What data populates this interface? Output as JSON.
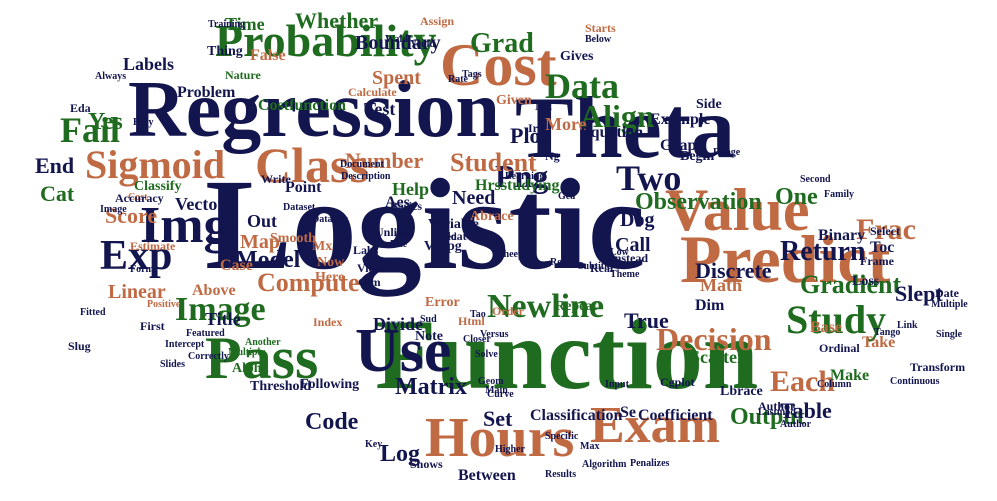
{
  "colors": {
    "navy": "#13154f",
    "green": "#1f6b1f",
    "orange": "#c06a44"
  },
  "words": [
    {
      "text": "Logistic",
      "color": "navy"
    },
    {
      "text": "Function",
      "color": "green"
    },
    {
      "text": "Regression",
      "color": "navy"
    },
    {
      "text": "Theta",
      "color": "navy"
    },
    {
      "text": "Predict",
      "color": "orange"
    },
    {
      "text": "Value",
      "color": "orange"
    },
    {
      "text": "Hours",
      "color": "orange"
    },
    {
      "text": "Cost",
      "color": "orange"
    },
    {
      "text": "Probability",
      "color": "green"
    },
    {
      "text": "Pass",
      "color": "green"
    },
    {
      "text": "Use",
      "color": "navy"
    },
    {
      "text": "Class",
      "color": "orange"
    },
    {
      "text": "Img",
      "color": "navy"
    },
    {
      "text": "Exam",
      "color": "orange"
    },
    {
      "text": "Sigmoid",
      "color": "orange"
    },
    {
      "text": "Study",
      "color": "green"
    },
    {
      "text": "Newline",
      "color": "green"
    },
    {
      "text": "Exp",
      "color": "navy"
    },
    {
      "text": "Image",
      "color": "green"
    },
    {
      "text": "Data",
      "color": "green"
    },
    {
      "text": "Align",
      "color": "green"
    },
    {
      "text": "Grad",
      "color": "green"
    },
    {
      "text": "Fail",
      "color": "green"
    },
    {
      "text": "Png",
      "color": "navy"
    },
    {
      "text": "Two",
      "color": "navy"
    },
    {
      "text": "Return",
      "color": "navy"
    },
    {
      "text": "Decision",
      "color": "orange"
    },
    {
      "text": "Frac",
      "color": "orange"
    },
    {
      "text": "Each",
      "color": "orange"
    },
    {
      "text": "Output",
      "color": "green"
    },
    {
      "text": "Gradient",
      "color": "green"
    },
    {
      "text": "Observation",
      "color": "green"
    },
    {
      "text": "Student",
      "color": "orange"
    },
    {
      "text": "Number",
      "color": "orange"
    },
    {
      "text": "Compute",
      "color": "orange"
    },
    {
      "text": "Model",
      "color": "navy"
    },
    {
      "text": "Matrix",
      "color": "navy"
    },
    {
      "text": "Map",
      "color": "orange"
    },
    {
      "text": "Linear",
      "color": "orange"
    },
    {
      "text": "Score",
      "color": "orange"
    },
    {
      "text": "Plot",
      "color": "navy"
    },
    {
      "text": "Discrete",
      "color": "navy"
    },
    {
      "text": "One",
      "color": "green"
    },
    {
      "text": "Yes",
      "color": "green"
    },
    {
      "text": "Cat",
      "color": "green"
    },
    {
      "text": "End",
      "color": "navy"
    },
    {
      "text": "Time",
      "color": "green"
    },
    {
      "text": "Whether",
      "color": "green"
    },
    {
      "text": "Boundary",
      "color": "navy"
    },
    {
      "text": "Spent",
      "color": "orange"
    },
    {
      "text": "Test",
      "color": "navy"
    },
    {
      "text": "More",
      "color": "orange"
    },
    {
      "text": "Code",
      "color": "navy"
    },
    {
      "text": "Log",
      "color": "navy"
    },
    {
      "text": "Set",
      "color": "navy"
    },
    {
      "text": "Classification",
      "color": "navy"
    },
    {
      "text": "True",
      "color": "navy"
    },
    {
      "text": "Table",
      "color": "navy"
    },
    {
      "text": "Slept",
      "color": "navy"
    },
    {
      "text": "Toc",
      "color": "navy"
    },
    {
      "text": "Math",
      "color": "orange"
    },
    {
      "text": "Call",
      "color": "navy"
    },
    {
      "text": "Dog",
      "color": "navy"
    },
    {
      "text": "Divide",
      "color": "navy"
    },
    {
      "text": "Title",
      "color": "navy"
    },
    {
      "text": "Above",
      "color": "orange"
    },
    {
      "text": "Case",
      "color": "orange"
    },
    {
      "text": "Vector",
      "color": "navy"
    },
    {
      "text": "Labels",
      "color": "navy"
    },
    {
      "text": "Problem",
      "color": "navy"
    },
    {
      "text": "Costfunction",
      "color": "green"
    },
    {
      "text": "Thing",
      "color": "navy"
    },
    {
      "text": "False",
      "color": "orange"
    },
    {
      "text": "Help",
      "color": "green"
    },
    {
      "text": "Need",
      "color": "navy"
    },
    {
      "text": "Point",
      "color": "navy"
    },
    {
      "text": "Out",
      "color": "navy"
    },
    {
      "text": "Alpha",
      "color": "green"
    },
    {
      "text": "Threshold",
      "color": "navy"
    },
    {
      "text": "Following",
      "color": "navy"
    },
    {
      "text": "Between",
      "color": "navy"
    },
    {
      "text": "Hrsstudying",
      "color": "green"
    },
    {
      "text": "Scatter",
      "color": "green"
    },
    {
      "text": "Coefficient",
      "color": "navy"
    },
    {
      "text": "Example",
      "color": "navy"
    },
    {
      "text": "Graph",
      "color": "navy"
    },
    {
      "text": "Equation",
      "color": "navy"
    },
    {
      "text": "Binary",
      "color": "navy"
    },
    {
      "text": "Dim",
      "color": "navy"
    },
    {
      "text": "Iris",
      "color": "navy"
    },
    {
      "text": "Ml",
      "color": "navy"
    },
    {
      "text": "Note",
      "color": "navy"
    },
    {
      "text": "Base",
      "color": "orange"
    },
    {
      "text": "Take",
      "color": "orange"
    },
    {
      "text": "Make",
      "color": "green"
    },
    {
      "text": "Repeat",
      "color": "green"
    },
    {
      "text": "Vs",
      "color": "navy"
    },
    {
      "text": "Re",
      "color": "navy"
    },
    {
      "text": "Html",
      "color": "orange"
    },
    {
      "text": "Jpg",
      "color": "navy"
    },
    {
      "text": "Float",
      "color": "navy"
    },
    {
      "text": "Given",
      "color": "orange"
    },
    {
      "text": "Gives",
      "color": "navy"
    },
    {
      "text": "Begin",
      "color": "navy"
    },
    {
      "text": "Side",
      "color": "navy"
    },
    {
      "text": "Cgplot",
      "color": "navy"
    },
    {
      "text": "Ng",
      "color": "navy"
    },
    {
      "text": "Aes",
      "color": "navy"
    },
    {
      "text": "Mx",
      "color": "orange"
    },
    {
      "text": "Now",
      "color": "orange"
    },
    {
      "text": "Here",
      "color": "orange"
    },
    {
      "text": "Smooth",
      "color": "orange"
    },
    {
      "text": "Error",
      "color": "orange"
    },
    {
      "text": "Index",
      "color": "orange"
    },
    {
      "text": "Order",
      "color": "orange"
    },
    {
      "text": "Variable",
      "color": "navy"
    },
    {
      "text": "Classify",
      "color": "green"
    },
    {
      "text": "Estimate",
      "color": "orange"
    },
    {
      "text": "Positive",
      "color": "orange"
    },
    {
      "text": "Cost",
      "color": "orange"
    },
    {
      "text": "Image",
      "color": "navy"
    },
    {
      "text": "Nature",
      "color": "green"
    },
    {
      "text": "Calculate",
      "color": "orange"
    },
    {
      "text": "Multiply",
      "color": "green"
    },
    {
      "text": "Another",
      "color": "green"
    },
    {
      "text": "Correctly",
      "color": "navy"
    },
    {
      "text": "Instead",
      "color": "navy"
    },
    {
      "text": "Real",
      "color": "navy"
    },
    {
      "text": "Input",
      "color": "navy"
    },
    {
      "text": "Low",
      "color": "navy"
    },
    {
      "text": "Closer",
      "color": "navy"
    },
    {
      "text": "Frame",
      "color": "navy"
    },
    {
      "text": "Loss",
      "color": "navy"
    },
    {
      "text": "Select",
      "color": "navy"
    },
    {
      "text": "Link",
      "color": "navy"
    },
    {
      "text": "Tango",
      "color": "navy"
    },
    {
      "text": "Date",
      "color": "navy"
    },
    {
      "text": "Write",
      "color": "navy"
    },
    {
      "text": "Basics",
      "color": "navy"
    },
    {
      "text": "Unlike",
      "color": "navy"
    },
    {
      "text": "Due",
      "color": "navy"
    },
    {
      "text": "View",
      "color": "navy"
    },
    {
      "text": "Labs",
      "color": "navy"
    },
    {
      "text": "Glm",
      "color": "navy"
    },
    {
      "text": "Abrace",
      "color": "orange"
    },
    {
      "text": "Lbrace",
      "color": "navy"
    },
    {
      "text": "Key",
      "color": "navy"
    },
    {
      "text": "Max",
      "color": "navy"
    },
    {
      "text": "Shows",
      "color": "navy"
    },
    {
      "text": "Gea",
      "color": "navy"
    },
    {
      "text": "Assign",
      "color": "orange"
    },
    {
      "text": "Starts",
      "color": "orange"
    },
    {
      "text": "Training",
      "color": "navy"
    },
    {
      "text": "Below",
      "color": "navy"
    },
    {
      "text": "Wald",
      "color": "navy"
    },
    {
      "text": "Yould",
      "color": "navy"
    },
    {
      "text": "Tags",
      "color": "navy"
    },
    {
      "text": "Rate",
      "color": "navy"
    },
    {
      "text": "Accuracy",
      "color": "navy"
    },
    {
      "text": "Fitted",
      "color": "navy"
    },
    {
      "text": "Slug",
      "color": "navy"
    },
    {
      "text": "Eda",
      "color": "navy"
    },
    {
      "text": "Always",
      "color": "navy"
    },
    {
      "text": "Easy",
      "color": "navy"
    },
    {
      "text": "Form",
      "color": "navy"
    },
    {
      "text": "First",
      "color": "navy"
    },
    {
      "text": "Slides",
      "color": "navy"
    },
    {
      "text": "Featured",
      "color": "navy"
    },
    {
      "text": "Intercept",
      "color": "navy"
    },
    {
      "text": "Dataset",
      "color": "navy"
    },
    {
      "text": "Datasets",
      "color": "navy"
    },
    {
      "text": "Document",
      "color": "navy"
    },
    {
      "text": "Description",
      "color": "navy"
    },
    {
      "text": "Learning",
      "color": "navy"
    },
    {
      "text": "Continuous",
      "color": "navy"
    },
    {
      "text": "Multiple",
      "color": "navy"
    },
    {
      "text": "Column",
      "color": "navy"
    },
    {
      "text": "Ordinal",
      "color": "navy"
    },
    {
      "text": "Family",
      "color": "navy"
    },
    {
      "text": "Range",
      "color": "navy"
    },
    {
      "text": "Second",
      "color": "navy"
    },
    {
      "text": "Transform",
      "color": "navy"
    },
    {
      "text": "Single",
      "color": "navy"
    },
    {
      "text": "Author",
      "color": "navy"
    },
    {
      "text": "Lastmod",
      "color": "navy"
    },
    {
      "text": "Author",
      "color": "navy"
    },
    {
      "text": "Main",
      "color": "navy"
    },
    {
      "text": "Geom",
      "color": "navy"
    },
    {
      "text": "Solve",
      "color": "navy"
    },
    {
      "text": "Higher",
      "color": "navy"
    },
    {
      "text": "Algorithm",
      "color": "navy"
    },
    {
      "text": "Penalizes",
      "color": "navy"
    },
    {
      "text": "Results",
      "color": "navy"
    },
    {
      "text": "Specific",
      "color": "navy"
    },
    {
      "text": "Versus",
      "color": "navy"
    },
    {
      "text": "Subtitle",
      "color": "navy"
    },
    {
      "text": "Curve",
      "color": "navy"
    },
    {
      "text": "Theme",
      "color": "navy"
    },
    {
      "text": "Sud",
      "color": "navy"
    },
    {
      "text": "Sheep",
      "color": "navy"
    },
    {
      "text": "Rep",
      "color": "navy"
    },
    {
      "text": "Tao",
      "color": "navy"
    },
    {
      "text": "Se",
      "color": "navy"
    },
    {
      "text": "Need",
      "color": "navy"
    }
  ]
}
